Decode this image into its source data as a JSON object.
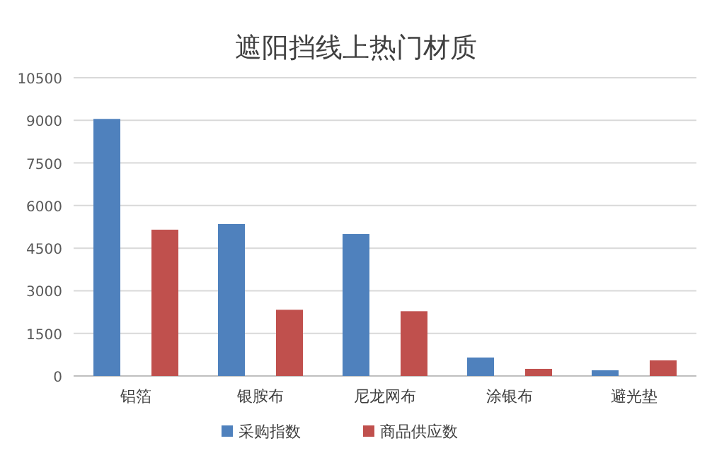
{
  "chart_data": {
    "type": "bar",
    "title": "遮阳挡线上热门材质",
    "categories": [
      "铝箔",
      "银胺布",
      "尼龙网布",
      "涂银布",
      "避光垫"
    ],
    "series": [
      {
        "name": "采购指数",
        "color": "#4f81bd",
        "values": [
          9050,
          5350,
          5000,
          650,
          200
        ]
      },
      {
        "name": "商品供应数",
        "color": "#c0504d",
        "values": [
          5150,
          2330,
          2280,
          250,
          550
        ]
      }
    ],
    "ylim": [
      0,
      10500
    ],
    "yticks": [
      0,
      1500,
      3000,
      4500,
      6000,
      7500,
      9000,
      10500
    ],
    "grid": "y",
    "legend": "bottom"
  }
}
